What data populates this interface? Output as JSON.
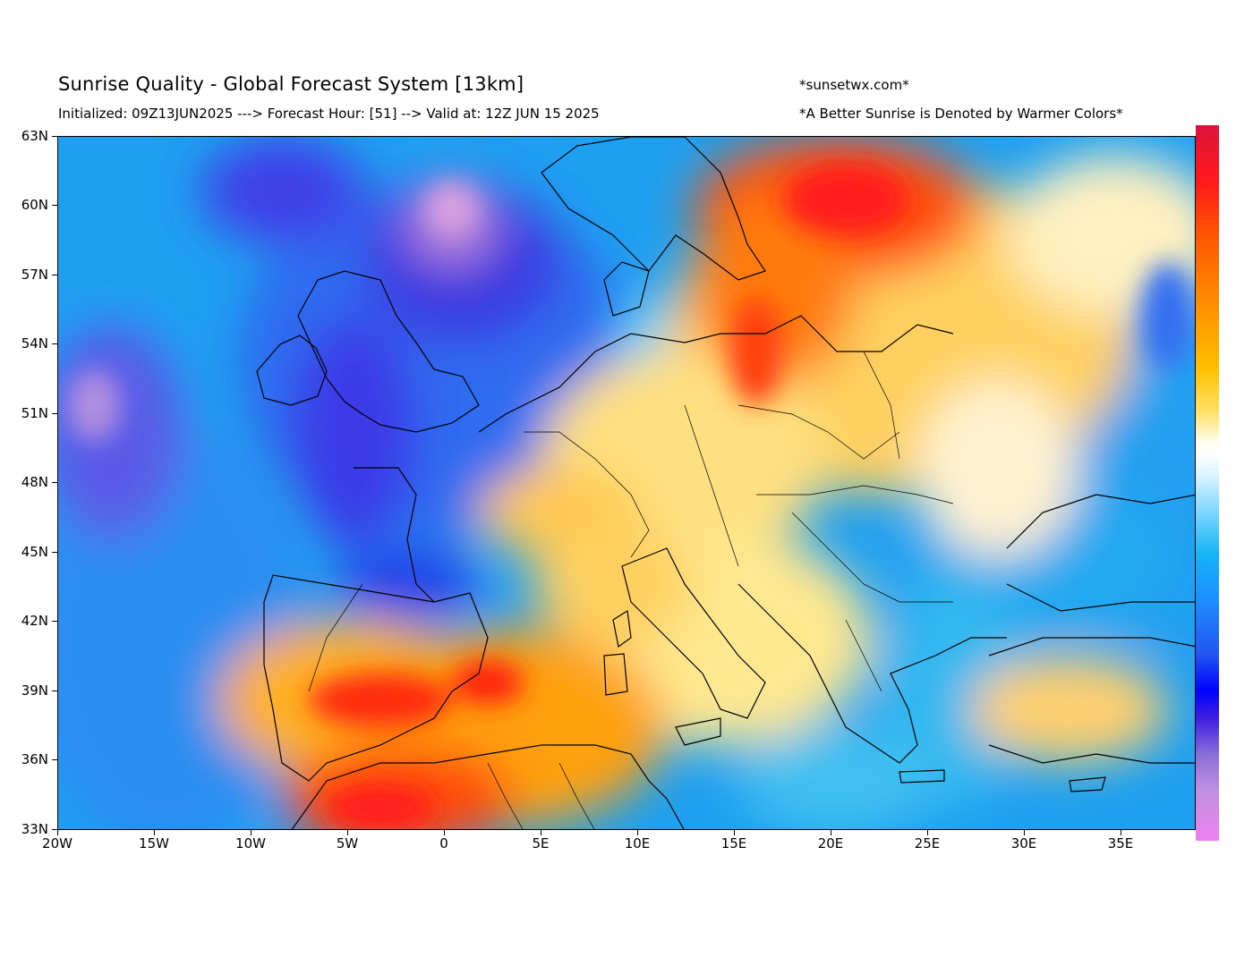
{
  "header": {
    "title": "Sunrise Quality - Global Forecast System [13km]",
    "subtitle": "Initialized: 09Z13JUN2025 ---> Forecast Hour: [51] --> Valid at: 12Z JUN 15 2025",
    "site": "*sunsetwx.com*",
    "note": "*A Better Sunrise is Denoted by Warmer Colors*"
  },
  "axes": {
    "lat_labels": [
      "63N",
      "60N",
      "57N",
      "54N",
      "51N",
      "48N",
      "45N",
      "42N",
      "39N",
      "36N",
      "33N"
    ],
    "lon_labels": [
      "20W",
      "15W",
      "10W",
      "5W",
      "0",
      "5E",
      "10E",
      "15E",
      "20E",
      "25E",
      "30E",
      "35E"
    ]
  },
  "colors": {
    "best": "#ff1a1a",
    "good": "#ffb400",
    "neutral": "#ffffff",
    "poor": "#14b4f5",
    "worst": "#0000ff",
    "lowest": "#ee82ee"
  }
}
